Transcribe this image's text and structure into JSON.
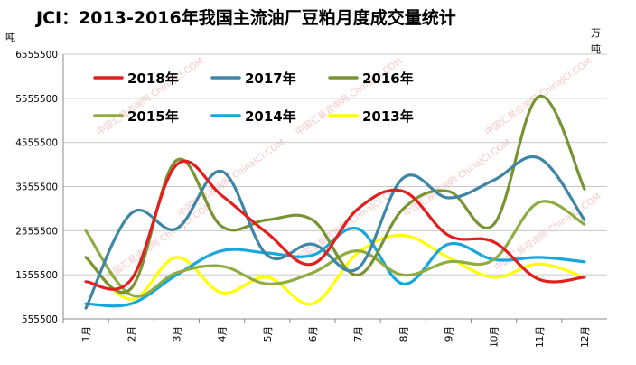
{
  "chart_data": {
    "type": "line",
    "title": "JCI：2013-2016年我国主流油厂豆粕月度成交量统计",
    "left_unit": "吨",
    "right_unit": "万\n吨",
    "categories": [
      "1月",
      "2月",
      "3月",
      "4月",
      "5月",
      "6月",
      "7月",
      "8月",
      "9月",
      "10月",
      "11月",
      "12月"
    ],
    "y_ticks": [
      "6555500",
      "5555500",
      "4555500",
      "3555500",
      "2555500",
      "1555500",
      "555500"
    ],
    "ylim": [
      555500,
      6555500
    ],
    "grid": "horizontal-only",
    "legend_position": "top-left",
    "watermark": "中国汇易咨询网 ChinaJCI.COM",
    "series": [
      {
        "name": "2018年",
        "color": "#e31e1e",
        "values": [
          1400000,
          1450000,
          4050000,
          3350000,
          2500000,
          1800000,
          3050000,
          3450000,
          2450000,
          2300000,
          1450000,
          1500000
        ]
      },
      {
        "name": "2017年",
        "color": "#3f86a6",
        "values": [
          800000,
          2950000,
          2600000,
          3900000,
          2000000,
          2250000,
          1700000,
          3750000,
          3300000,
          3700000,
          4200000,
          2800000
        ]
      },
      {
        "name": "2016年",
        "color": "#7a9332",
        "values": [
          1950000,
          1250000,
          4150000,
          2650000,
          2800000,
          2800000,
          1550000,
          3050000,
          3450000,
          2700000,
          5600000,
          3500000
        ]
      },
      {
        "name": "2015年",
        "color": "#8fac43",
        "values": [
          2550000,
          1100000,
          1600000,
          1750000,
          1350000,
          1600000,
          2100000,
          1550000,
          1850000,
          1900000,
          3200000,
          2700000
        ]
      },
      {
        "name": "2014年",
        "color": "#18a7db",
        "values": [
          900000,
          900000,
          1550000,
          2100000,
          2050000,
          2000000,
          2600000,
          1350000,
          2250000,
          1900000,
          1950000,
          1850000
        ]
      },
      {
        "name": "2013年",
        "color": "#ffff00",
        "values": [
          1950000,
          1000000,
          1950000,
          1150000,
          1500000,
          900000,
          2050000,
          2450000,
          1950000,
          1500000,
          1800000,
          1500000
        ]
      }
    ]
  }
}
